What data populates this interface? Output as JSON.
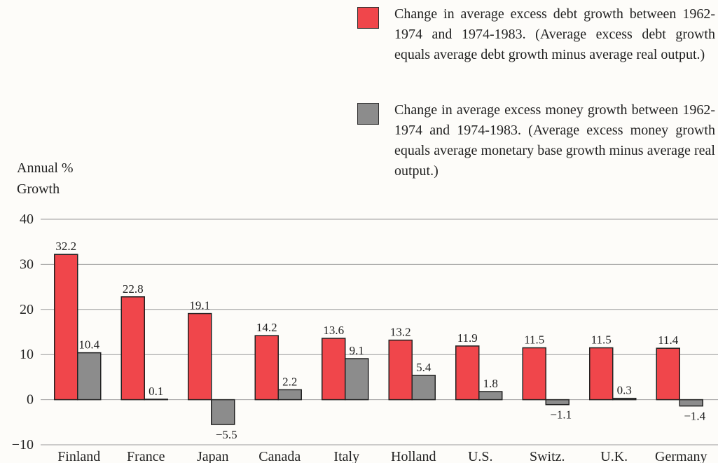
{
  "chart_data": {
    "type": "bar",
    "ylabel": "Annual % Growth",
    "categories": [
      "Finland",
      "France",
      "Japan",
      "Canada",
      "Italy",
      "Holland",
      "U.S.",
      "Switz.",
      "U.K.",
      "Germany"
    ],
    "series": [
      {
        "name": "Change in average excess debt growth between 1962-1974 and 1974-1983. (Average excess debt growth equals average debt growth minus average real output.)",
        "color": "#f0464b",
        "values": [
          32.2,
          22.8,
          19.1,
          14.2,
          13.6,
          13.2,
          11.9,
          11.5,
          11.5,
          11.4
        ]
      },
      {
        "name": "Change in average excess money growth between 1962-1974 and 1974-1983. (Average excess money growth equals average monetary base growth minus average real output.)",
        "color": "#8c8c8c",
        "values": [
          10.4,
          0.1,
          -5.5,
          2.2,
          9.1,
          5.4,
          1.8,
          -1.1,
          0.3,
          -1.4
        ],
        "value_labels": [
          "10.4",
          "0.1",
          "−5.5",
          "2.2",
          "9.1",
          "5.4",
          "1.8",
          "−1.1",
          "0.3",
          "−1.4"
        ]
      }
    ],
    "ylim": [
      -10,
      40
    ],
    "yticks": [
      {
        "value": -10,
        "label": "−10"
      },
      0,
      10,
      20,
      30,
      40
    ],
    "grid": true
  }
}
